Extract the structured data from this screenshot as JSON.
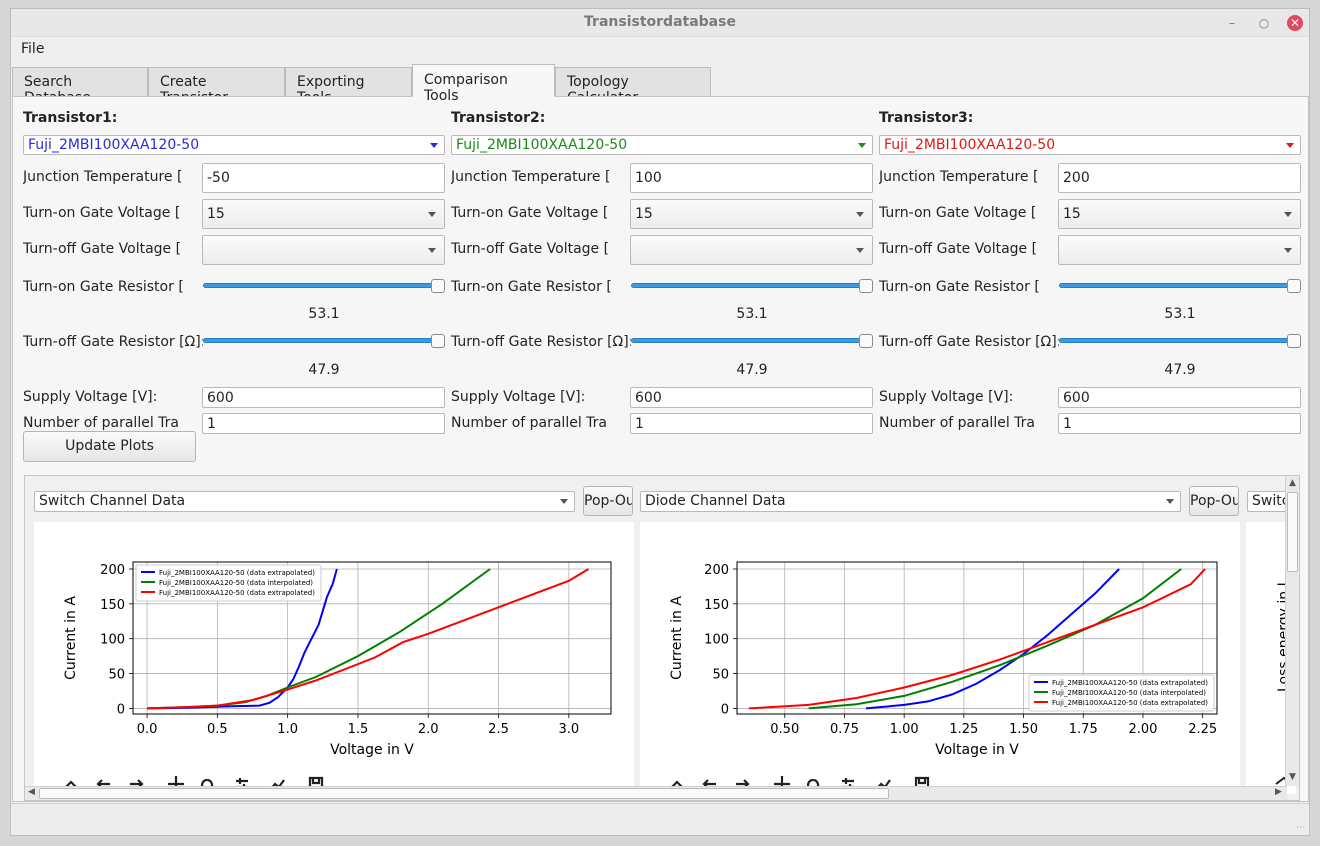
{
  "window": {
    "title": "Transistordatabase"
  },
  "menu": {
    "file": "File"
  },
  "tabs": [
    "Search Database",
    "Create Transistor",
    "Exporting Tools",
    "Comparison Tools",
    "Topology Calculator"
  ],
  "active_tab": "Comparison Tools",
  "columns": [
    {
      "header": "Transistor1:",
      "transistor": "Fuji_2MBI100XAA120-50",
      "color": "#2a2ae0",
      "junction_temperature_label": "Junction Temperature [",
      "junction_temperature": "-50",
      "turn_on_gate_voltage_label": "Turn-on Gate Voltage [",
      "turn_on_gate_voltage": "15",
      "turn_off_gate_voltage_label": "Turn-off Gate Voltage [",
      "turn_off_gate_voltage": "",
      "turn_on_gate_resistor_label": "Turn-on Gate Resistor [",
      "turn_on_gate_resistor": "53.1",
      "turn_off_gate_resistor_label": "Turn-off Gate Resistor [Ω]:",
      "turn_off_gate_resistor": "47.9",
      "supply_voltage_label": "Supply Voltage [V]:",
      "supply_voltage": "600",
      "parallel_label": "Number of parallel Tra",
      "parallel": "1"
    },
    {
      "header": "Transistor2:",
      "transistor": "Fuji_2MBI100XAA120-50",
      "color": "#1a8a1a",
      "junction_temperature_label": "Junction Temperature [",
      "junction_temperature": "100",
      "turn_on_gate_voltage_label": "Turn-on Gate Voltage [",
      "turn_on_gate_voltage": "15",
      "turn_off_gate_voltage_label": "Turn-off Gate Voltage [",
      "turn_off_gate_voltage": "",
      "turn_on_gate_resistor_label": "Turn-on Gate Resistor [",
      "turn_on_gate_resistor": "53.1",
      "turn_off_gate_resistor_label": "Turn-off Gate Resistor [Ω]:",
      "turn_off_gate_resistor": "47.9",
      "supply_voltage_label": "Supply Voltage [V]:",
      "supply_voltage": "600",
      "parallel_label": "Number of parallel Tra",
      "parallel": "1"
    },
    {
      "header": "Transistor3:",
      "transistor": "Fuji_2MBI100XAA120-50",
      "color": "#e01818",
      "junction_temperature_label": "Junction Temperature [",
      "junction_temperature": "200",
      "turn_on_gate_voltage_label": "Turn-on Gate Voltage [",
      "turn_on_gate_voltage": "15",
      "turn_off_gate_voltage_label": "Turn-off Gate Voltage [",
      "turn_off_gate_voltage": "",
      "turn_on_gate_resistor_label": "Turn-on Gate Resistor [",
      "turn_on_gate_resistor": "53.1",
      "turn_off_gate_resistor_label": "Turn-off Gate Resistor [Ω]:",
      "turn_off_gate_resistor": "47.9",
      "supply_voltage_label": "Supply Voltage [V]:",
      "supply_voltage": "600",
      "parallel_label": "Number of parallel Tra",
      "parallel": "1"
    }
  ],
  "update_button": "Update Plots",
  "plot_panels": [
    {
      "selector": "Switch Channel Data",
      "popout": "Pop-Out"
    },
    {
      "selector": "Diode Channel Data",
      "popout": "Pop-Out"
    },
    {
      "selector": "Switch",
      "popout": ""
    }
  ],
  "third_plot_ylabel_fragment": "Loss energy in J",
  "toolbar_icons": [
    "home-icon",
    "back-icon",
    "forward-icon",
    "pan-icon",
    "zoom-icon",
    "configure-icon",
    "edit-axis-icon",
    "save-icon"
  ],
  "chart_data": [
    {
      "type": "line",
      "title": "",
      "xlabel": "Voltage in V",
      "ylabel": "Current in A",
      "xlim": [
        -0.1,
        3.3
      ],
      "ylim": [
        -8,
        210
      ],
      "xticks": [
        "0.0",
        "0.5",
        "1.0",
        "1.5",
        "2.0",
        "2.5",
        "3.0"
      ],
      "yticks": [
        "0",
        "50",
        "100",
        "150",
        "200"
      ],
      "grid": true,
      "legend_position": "upper-left",
      "series": [
        {
          "name": "Fuji_2MBI100XAA120-50 (data extrapolated)",
          "color": "#0000ff",
          "x": [
            0.0,
            0.3,
            0.6,
            0.8,
            0.87,
            0.93,
            1.0,
            1.04,
            1.08,
            1.12,
            1.17,
            1.22,
            1.25,
            1.28,
            1.32,
            1.35
          ],
          "y": [
            0,
            1,
            3,
            4,
            8,
            16,
            30,
            42,
            60,
            80,
            100,
            120,
            140,
            160,
            178,
            200
          ]
        },
        {
          "name": "Fuji_2MBI100XAA120-50 (data interpolated)",
          "color": "#008000",
          "x": [
            0.0,
            0.3,
            0.5,
            0.7,
            0.85,
            1.0,
            1.2,
            1.5,
            1.8,
            2.1,
            2.44
          ],
          "y": [
            0,
            2,
            4,
            9,
            18,
            30,
            45,
            75,
            110,
            150,
            200
          ]
        },
        {
          "name": "Fuji_2MBI100XAA120-50 (data extrapolated)",
          "color": "#ff0000",
          "x": [
            0.0,
            0.3,
            0.5,
            0.75,
            1.0,
            1.2,
            1.62,
            1.82,
            2.0,
            2.5,
            3.0,
            3.14
          ],
          "y": [
            0,
            2,
            4,
            12,
            27,
            40,
            73,
            95,
            107,
            145,
            183,
            200
          ]
        }
      ]
    },
    {
      "type": "line",
      "title": "",
      "xlabel": "Voltage in V",
      "ylabel": "Current in A",
      "xlim": [
        0.3,
        2.31
      ],
      "ylim": [
        -8,
        210
      ],
      "xticks": [
        "0.50",
        "0.75",
        "1.00",
        "1.25",
        "1.50",
        "1.75",
        "2.00",
        "2.25"
      ],
      "yticks": [
        "0",
        "50",
        "100",
        "150",
        "200"
      ],
      "grid": true,
      "legend_position": "lower-right",
      "series": [
        {
          "name": "Fuji_2MBI100XAA120-50 (data extrapolated)",
          "color": "#0000ff",
          "x": [
            0.84,
            1.0,
            1.1,
            1.2,
            1.3,
            1.4,
            1.5,
            1.6,
            1.7,
            1.8,
            1.9
          ],
          "y": [
            0,
            5,
            10,
            20,
            35,
            55,
            78,
            105,
            135,
            165,
            200
          ]
        },
        {
          "name": "Fuji_2MBI100XAA120-50 (data interpolated)",
          "color": "#008000",
          "x": [
            0.6,
            0.8,
            1.0,
            1.2,
            1.4,
            1.6,
            1.8,
            2.0,
            2.16
          ],
          "y": [
            0,
            6,
            18,
            38,
            62,
            90,
            120,
            158,
            200
          ]
        },
        {
          "name": "Fuji_2MBI100XAA120-50 (data extrapolated)",
          "color": "#ff0000",
          "x": [
            0.35,
            0.6,
            0.8,
            1.0,
            1.2,
            1.4,
            1.6,
            1.8,
            2.0,
            2.2,
            2.26
          ],
          "y": [
            0,
            5,
            15,
            30,
            48,
            70,
            95,
            120,
            145,
            178,
            200
          ]
        }
      ]
    }
  ]
}
